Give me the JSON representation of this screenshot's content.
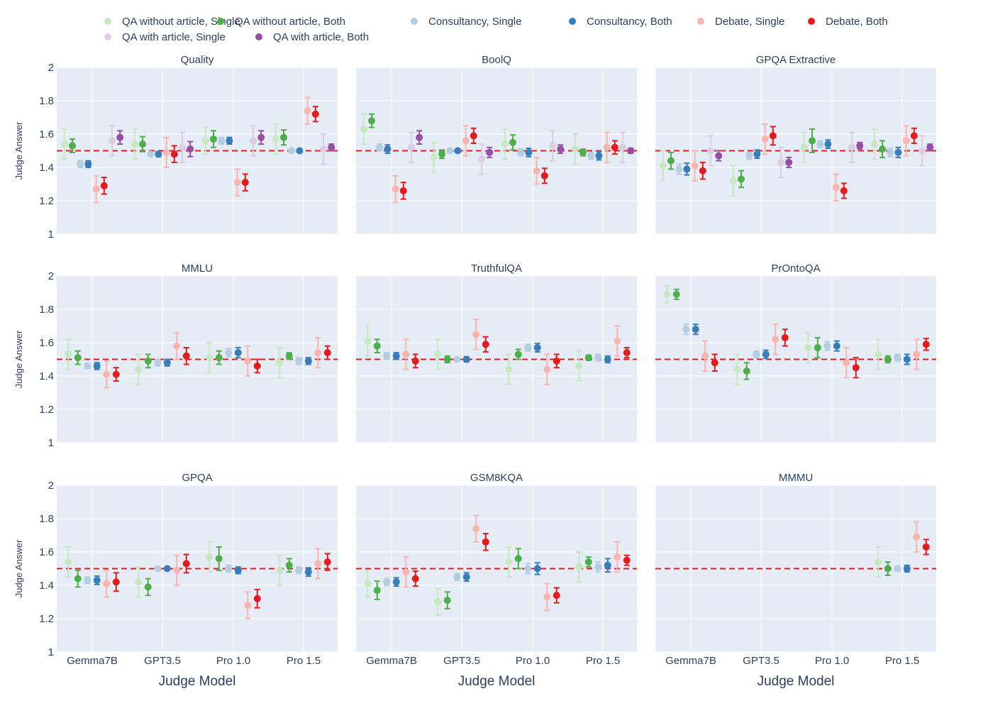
{
  "legend": [
    {
      "label": "QA without article, Single",
      "color": "#c7e9c0"
    },
    {
      "label": "QA without article, Both",
      "color": "#4daf4a"
    },
    {
      "label": "Consultancy, Single",
      "color": "#b3cde3"
    },
    {
      "label": "Consultancy, Both",
      "color": "#377eb8"
    },
    {
      "label": "Debate, Single",
      "color": "#fbb4ae"
    },
    {
      "label": "Debate, Both",
      "color": "#e41a1c"
    },
    {
      "label": "QA with article, Single",
      "color": "#decbe4"
    },
    {
      "label": "QA with article, Both",
      "color": "#984ea3"
    }
  ],
  "colors": {
    "plot_bg": "#e5ecf6",
    "grid": "#ffffff",
    "reference_line": "#e41a1c",
    "text": "#2a3f5f"
  },
  "ylabel": "Judge Answer",
  "xlabel": "Judge Model",
  "categories": [
    "Gemma7B",
    "GPT3.5",
    "Pro 1.0",
    "Pro 1.5"
  ],
  "yticks": [
    "1",
    "1.2",
    "1.4",
    "1.6",
    "1.8",
    "2"
  ],
  "chart_data": [
    {
      "type": "scatter",
      "title": "Quality",
      "ylim": [
        1,
        2
      ],
      "reference_line": 1.5,
      "series": [
        {
          "name": "QA without article, Single",
          "values": [
            1.54,
            1.54,
            1.56,
            1.57
          ],
          "err": [
            0.09,
            0.09,
            0.08,
            0.09
          ]
        },
        {
          "name": "QA without article, Both",
          "values": [
            1.53,
            1.54,
            1.57,
            1.58
          ],
          "err": [
            0.04,
            0.045,
            0.05,
            0.045
          ]
        },
        {
          "name": "Consultancy, Single",
          "values": [
            1.42,
            1.48,
            1.56,
            1.5
          ],
          "err": [
            0.02,
            0.01,
            0.02,
            0.005
          ]
        },
        {
          "name": "Consultancy, Both",
          "values": [
            1.42,
            1.48,
            1.56,
            1.5
          ],
          "err": [
            0.02,
            0.015,
            0.02,
            0.01
          ]
        },
        {
          "name": "Debate, Single",
          "values": [
            1.27,
            1.49,
            1.31,
            1.74
          ],
          "err": [
            0.08,
            0.09,
            0.08,
            0.08
          ]
        },
        {
          "name": "Debate, Both",
          "values": [
            1.29,
            1.48,
            1.31,
            1.72
          ],
          "err": [
            0.05,
            0.05,
            0.05,
            0.045
          ]
        },
        {
          "name": "QA with article, Single",
          "values": [
            1.56,
            1.52,
            1.56,
            1.51
          ],
          "err": [
            0.09,
            0.09,
            0.09,
            0.09
          ]
        },
        {
          "name": "QA with article, Both",
          "values": [
            1.58,
            1.51,
            1.58,
            1.52
          ],
          "err": [
            0.04,
            0.045,
            0.04,
            0.02
          ]
        }
      ]
    },
    {
      "type": "scatter",
      "title": "BoolQ",
      "ylim": [
        1,
        2
      ],
      "reference_line": 1.5,
      "series": [
        {
          "name": "QA without article, Single",
          "values": [
            1.63,
            1.46,
            1.54,
            1.51
          ],
          "err": [
            0.09,
            0.09,
            0.09,
            0.09
          ]
        },
        {
          "name": "QA without article, Both",
          "values": [
            1.68,
            1.48,
            1.55,
            1.49
          ],
          "err": [
            0.04,
            0.025,
            0.045,
            0.02
          ]
        },
        {
          "name": "Consultancy, Single",
          "values": [
            1.52,
            1.5,
            1.49,
            1.47
          ],
          "err": [
            0.02,
            0.01,
            0.02,
            0.02
          ]
        },
        {
          "name": "Consultancy, Both",
          "values": [
            1.51,
            1.5,
            1.49,
            1.47
          ],
          "err": [
            0.025,
            0.01,
            0.025,
            0.025
          ]
        },
        {
          "name": "Debate, Single",
          "values": [
            1.27,
            1.56,
            1.38,
            1.52
          ],
          "err": [
            0.08,
            0.09,
            0.08,
            0.09
          ]
        },
        {
          "name": "Debate, Both",
          "values": [
            1.26,
            1.59,
            1.35,
            1.52
          ],
          "err": [
            0.05,
            0.045,
            0.045,
            0.04
          ]
        },
        {
          "name": "QA with article, Single",
          "values": [
            1.52,
            1.45,
            1.53,
            1.52
          ],
          "err": [
            0.09,
            0.09,
            0.09,
            0.09
          ]
        },
        {
          "name": "QA with article, Both",
          "values": [
            1.58,
            1.49,
            1.51,
            1.5
          ],
          "err": [
            0.04,
            0.03,
            0.025,
            0.015
          ]
        }
      ]
    },
    {
      "type": "scatter",
      "title": "GPQA Extractive",
      "ylim": [
        1,
        2
      ],
      "reference_line": 1.5,
      "series": [
        {
          "name": "QA without article, Single",
          "values": [
            1.41,
            1.32,
            1.52,
            1.54
          ],
          "err": [
            0.09,
            0.09,
            0.09,
            0.09
          ]
        },
        {
          "name": "QA without article, Both",
          "values": [
            1.44,
            1.33,
            1.56,
            1.51
          ],
          "err": [
            0.05,
            0.05,
            0.07,
            0.05
          ]
        },
        {
          "name": "Consultancy, Single",
          "values": [
            1.39,
            1.47,
            1.54,
            1.49
          ],
          "err": [
            0.03,
            0.02,
            0.02,
            0.025
          ]
        },
        {
          "name": "Consultancy, Both",
          "values": [
            1.39,
            1.48,
            1.54,
            1.49
          ],
          "err": [
            0.035,
            0.025,
            0.025,
            0.03
          ]
        },
        {
          "name": "Debate, Single",
          "values": [
            1.41,
            1.57,
            1.28,
            1.56
          ],
          "err": [
            0.09,
            0.09,
            0.08,
            0.09
          ]
        },
        {
          "name": "Debate, Both",
          "values": [
            1.38,
            1.59,
            1.26,
            1.59
          ],
          "err": [
            0.05,
            0.055,
            0.045,
            0.045
          ]
        },
        {
          "name": "QA with article, Single",
          "values": [
            1.5,
            1.43,
            1.52,
            1.5
          ],
          "err": [
            0.09,
            0.09,
            0.09,
            0.09
          ]
        },
        {
          "name": "QA with article, Both",
          "values": [
            1.47,
            1.43,
            1.53,
            1.52
          ],
          "err": [
            0.03,
            0.03,
            0.02,
            0.02
          ]
        }
      ]
    },
    {
      "type": "scatter",
      "title": "MMLU",
      "ylim": [
        1,
        2
      ],
      "reference_line": 1.5,
      "series": [
        {
          "name": "QA without article, Single",
          "values": [
            1.53,
            1.44,
            1.51,
            1.48
          ],
          "err": [
            0.09,
            0.09,
            0.09,
            0.09
          ]
        },
        {
          "name": "QA without article, Both",
          "values": [
            1.51,
            1.49,
            1.51,
            1.52
          ],
          "err": [
            0.04,
            0.04,
            0.04,
            0.02
          ]
        },
        {
          "name": "Consultancy, Single",
          "values": [
            1.46,
            1.48,
            1.54,
            1.49
          ],
          "err": [
            0.015,
            0.02,
            0.025,
            0.02
          ]
        },
        {
          "name": "Consultancy, Both",
          "values": [
            1.46,
            1.48,
            1.54,
            1.49
          ],
          "err": [
            0.02,
            0.02,
            0.03,
            0.02
          ]
        },
        {
          "name": "Debate, Single",
          "values": [
            1.41,
            1.58,
            1.49,
            1.54
          ],
          "err": [
            0.08,
            0.08,
            0.09,
            0.09
          ]
        },
        {
          "name": "Debate, Both",
          "values": [
            1.41,
            1.52,
            1.46,
            1.54
          ],
          "err": [
            0.04,
            0.05,
            0.04,
            0.04
          ]
        }
      ]
    },
    {
      "type": "scatter",
      "title": "TruthfulQA",
      "ylim": [
        1,
        2
      ],
      "reference_line": 1.5,
      "series": [
        {
          "name": "QA without article, Single",
          "values": [
            1.61,
            1.53,
            1.44,
            1.46
          ],
          "err": [
            0.09,
            0.09,
            0.09,
            0.09
          ]
        },
        {
          "name": "QA without article, Both",
          "values": [
            1.58,
            1.5,
            1.53,
            1.51
          ],
          "err": [
            0.04,
            0.02,
            0.03,
            0.015
          ]
        },
        {
          "name": "Consultancy, Single",
          "values": [
            1.52,
            1.5,
            1.57,
            1.51
          ],
          "err": [
            0.02,
            0.01,
            0.02,
            0.02
          ]
        },
        {
          "name": "Consultancy, Both",
          "values": [
            1.52,
            1.5,
            1.57,
            1.5
          ],
          "err": [
            0.02,
            0.015,
            0.025,
            0.02
          ]
        },
        {
          "name": "Debate, Single",
          "values": [
            1.53,
            1.65,
            1.44,
            1.61
          ],
          "err": [
            0.09,
            0.09,
            0.09,
            0.09
          ]
        },
        {
          "name": "Debate, Both",
          "values": [
            1.49,
            1.59,
            1.49,
            1.54
          ],
          "err": [
            0.04,
            0.045,
            0.04,
            0.03
          ]
        }
      ]
    },
    {
      "type": "scatter",
      "title": "PrOntoQA",
      "ylim": [
        1,
        2
      ],
      "reference_line": 1.5,
      "series": [
        {
          "name": "QA without article, Single",
          "values": [
            1.89,
            1.44,
            1.57,
            1.53
          ],
          "err": [
            0.05,
            0.09,
            0.09,
            0.09
          ]
        },
        {
          "name": "QA without article, Both",
          "values": [
            1.89,
            1.43,
            1.57,
            1.5
          ],
          "err": [
            0.03,
            0.05,
            0.06,
            0.02
          ]
        },
        {
          "name": "Consultancy, Single",
          "values": [
            1.68,
            1.53,
            1.58,
            1.51
          ],
          "err": [
            0.03,
            0.02,
            0.025,
            0.02
          ]
        },
        {
          "name": "Consultancy, Both",
          "values": [
            1.68,
            1.53,
            1.58,
            1.5
          ],
          "err": [
            0.03,
            0.025,
            0.03,
            0.03
          ]
        },
        {
          "name": "Debate, Single",
          "values": [
            1.52,
            1.62,
            1.48,
            1.53
          ],
          "err": [
            0.09,
            0.09,
            0.09,
            0.09
          ]
        },
        {
          "name": "Debate, Both",
          "values": [
            1.48,
            1.63,
            1.45,
            1.59
          ],
          "err": [
            0.05,
            0.05,
            0.06,
            0.035
          ]
        }
      ]
    },
    {
      "type": "scatter",
      "title": "GPQA",
      "ylim": [
        1,
        2
      ],
      "reference_line": 1.5,
      "series": [
        {
          "name": "QA without article, Single",
          "values": [
            1.54,
            1.42,
            1.57,
            1.49
          ],
          "err": [
            0.09,
            0.09,
            0.09,
            0.09
          ]
        },
        {
          "name": "QA without article, Both",
          "values": [
            1.44,
            1.39,
            1.56,
            1.52
          ],
          "err": [
            0.05,
            0.05,
            0.07,
            0.04
          ]
        },
        {
          "name": "Consultancy, Single",
          "values": [
            1.43,
            1.5,
            1.5,
            1.49
          ],
          "err": [
            0.02,
            0.01,
            0.02,
            0.02
          ]
        },
        {
          "name": "Consultancy, Both",
          "values": [
            1.43,
            1.5,
            1.49,
            1.48
          ],
          "err": [
            0.025,
            0.01,
            0.02,
            0.025
          ]
        },
        {
          "name": "Debate, Single",
          "values": [
            1.41,
            1.49,
            1.28,
            1.53
          ],
          "err": [
            0.08,
            0.09,
            0.08,
            0.09
          ]
        },
        {
          "name": "Debate, Both",
          "values": [
            1.42,
            1.53,
            1.32,
            1.54
          ],
          "err": [
            0.055,
            0.055,
            0.055,
            0.05
          ]
        }
      ]
    },
    {
      "type": "scatter",
      "title": "GSM8KQA",
      "ylim": [
        1,
        2
      ],
      "reference_line": 1.5,
      "series": [
        {
          "name": "QA without article, Single",
          "values": [
            1.41,
            1.3,
            1.54,
            1.51
          ],
          "err": [
            0.08,
            0.08,
            0.09,
            0.09
          ]
        },
        {
          "name": "QA without article, Both",
          "values": [
            1.37,
            1.31,
            1.56,
            1.54
          ],
          "err": [
            0.055,
            0.05,
            0.06,
            0.03
          ]
        },
        {
          "name": "Consultancy, Single",
          "values": [
            1.42,
            1.45,
            1.5,
            1.51
          ],
          "err": [
            0.02,
            0.02,
            0.03,
            0.03
          ]
        },
        {
          "name": "Consultancy, Both",
          "values": [
            1.42,
            1.45,
            1.5,
            1.52
          ],
          "err": [
            0.025,
            0.025,
            0.035,
            0.04
          ]
        },
        {
          "name": "Debate, Single",
          "values": [
            1.48,
            1.74,
            1.33,
            1.57
          ],
          "err": [
            0.09,
            0.08,
            0.08,
            0.09
          ]
        },
        {
          "name": "Debate, Both",
          "values": [
            1.44,
            1.66,
            1.34,
            1.55
          ],
          "err": [
            0.045,
            0.05,
            0.045,
            0.03
          ]
        }
      ]
    },
    {
      "type": "scatter",
      "title": "MMMU",
      "ylim": [
        1,
        2
      ],
      "reference_line": 1.5,
      "series": [
        {
          "name": "QA without article, Single",
          "values": [
            null,
            null,
            null,
            1.54
          ],
          "err": [
            null,
            null,
            null,
            0.09
          ]
        },
        {
          "name": "QA without article, Both",
          "values": [
            null,
            null,
            null,
            1.5
          ],
          "err": [
            null,
            null,
            null,
            0.04
          ]
        },
        {
          "name": "Consultancy, Single",
          "values": [
            null,
            null,
            null,
            1.5
          ],
          "err": [
            null,
            null,
            null,
            0.015
          ]
        },
        {
          "name": "Consultancy, Both",
          "values": [
            null,
            null,
            null,
            1.5
          ],
          "err": [
            null,
            null,
            null,
            0.02
          ]
        },
        {
          "name": "Debate, Single",
          "values": [
            null,
            null,
            null,
            1.69
          ],
          "err": [
            null,
            null,
            null,
            0.09
          ]
        },
        {
          "name": "Debate, Both",
          "values": [
            null,
            null,
            null,
            1.63
          ],
          "err": [
            null,
            null,
            null,
            0.045
          ]
        }
      ]
    }
  ]
}
